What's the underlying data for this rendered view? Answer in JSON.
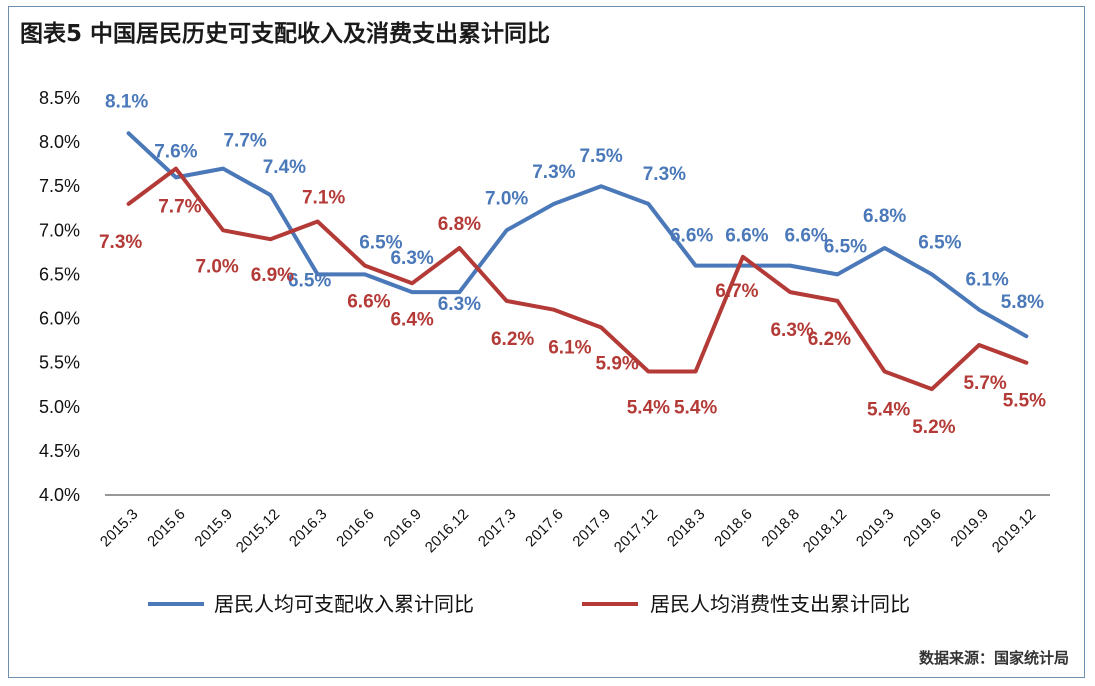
{
  "title": "图表5  中国居民历史可支配收入及消费支出累计同比",
  "source": "数据来源：国家统计局",
  "colors": {
    "income": "#4a78b8",
    "consumption": "#b33a36",
    "axis": "#777777"
  },
  "chart_data": {
    "type": "line",
    "title": "图表5  中国居民历史可支配收入及消费支出累计同比",
    "categories": [
      "2015.3",
      "2015.6",
      "2015.9",
      "2015.12",
      "2016.3",
      "2016.6",
      "2016.9",
      "2016.12",
      "2017.3",
      "2017.6",
      "2017.9",
      "2017.12",
      "2018.3",
      "2018.6",
      "2018.8",
      "2018.12",
      "2019.3",
      "2019.6",
      "2019.9",
      "2019.12"
    ],
    "ylim": [
      4.0,
      8.5
    ],
    "yticks": [
      "8.5%",
      "8.0%",
      "7.5%",
      "7.0%",
      "6.5%",
      "6.0%",
      "5.5%",
      "5.0%",
      "4.5%",
      "4.0%"
    ],
    "ytick_values": [
      8.5,
      8.0,
      7.5,
      7.0,
      6.5,
      6.0,
      5.5,
      5.0,
      4.5,
      4.0
    ],
    "legend_position": "bottom",
    "grid": false,
    "series": [
      {
        "name": "居民人均可支配收入累计同比",
        "color": "#4a78b8",
        "values": [
          8.1,
          7.6,
          7.7,
          7.4,
          6.5,
          6.5,
          6.3,
          6.3,
          7.0,
          7.3,
          7.5,
          7.3,
          6.6,
          6.6,
          6.6,
          6.5,
          6.8,
          6.5,
          6.1,
          5.8
        ],
        "labels": [
          "8.1%",
          "7.6%",
          "7.7%",
          "7.4%",
          "6.5%",
          "6.5%",
          "6.3%",
          "6.3%",
          "7.0%",
          "7.3%",
          "7.5%",
          "7.3%",
          "6.6%",
          "6.6%",
          "6.6%",
          "6.5%",
          "6.8%",
          "6.5%",
          "6.1%",
          "5.8%"
        ]
      },
      {
        "name": "居民人均消费性支出累计同比",
        "color": "#b33a36",
        "values": [
          7.3,
          7.7,
          7.0,
          6.9,
          7.1,
          6.6,
          6.4,
          6.8,
          6.2,
          6.1,
          5.9,
          5.4,
          5.4,
          6.7,
          6.3,
          6.2,
          5.4,
          5.2,
          5.7,
          5.5
        ],
        "labels": [
          "7.3%",
          "7.7%",
          "7.0%",
          "6.9%",
          "7.1%",
          "6.6%",
          "6.4%",
          "6.8%",
          "6.2%",
          "6.1%",
          "5.9%",
          "5.4%",
          "5.4%",
          "6.7%",
          "6.3%",
          "6.2%",
          "5.4%",
          "5.2%",
          "5.7%",
          "5.5%"
        ]
      }
    ]
  }
}
